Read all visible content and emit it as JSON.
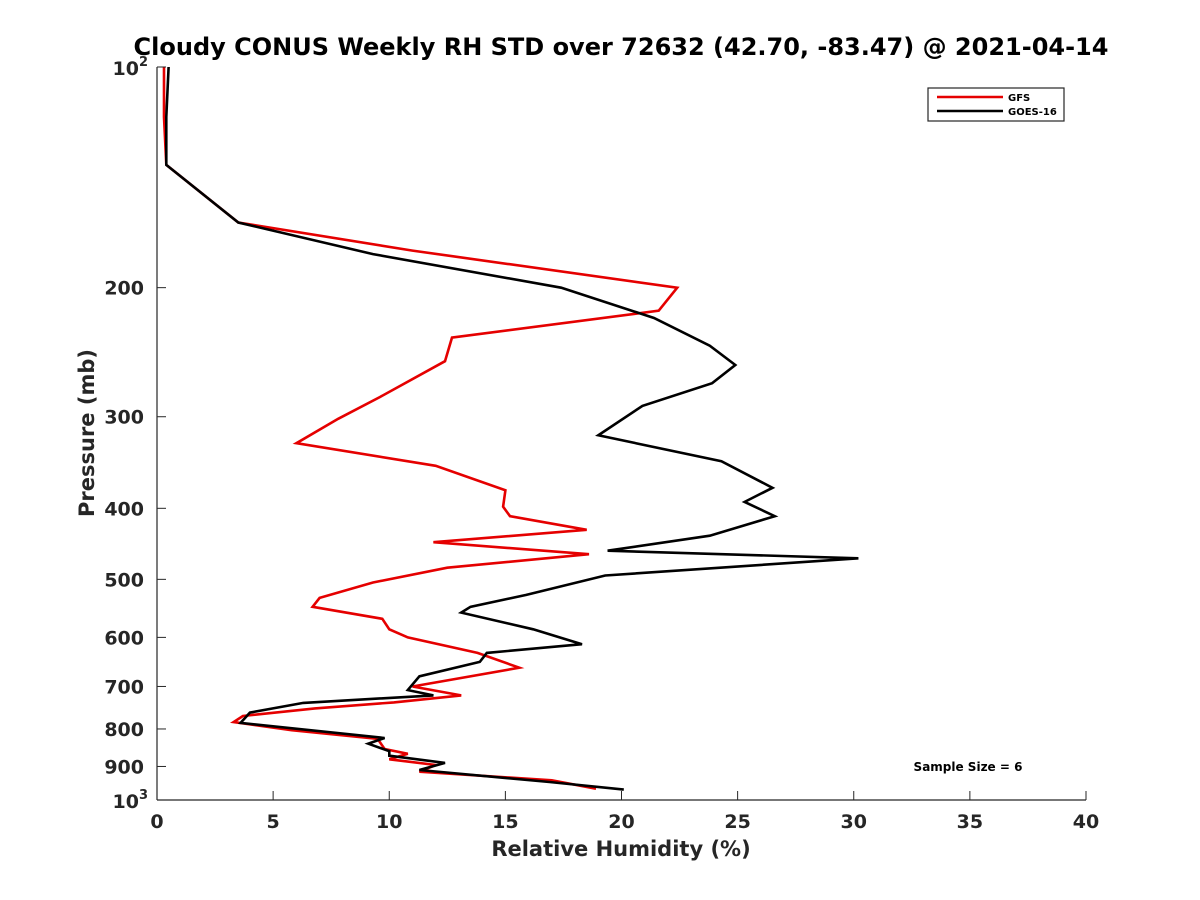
{
  "chart_data": {
    "type": "line",
    "title": "Cloudy CONUS Weekly RH STD over 72632 (42.70, -83.47) @ 2021-04-14",
    "xlabel": "Relative Humidity (%)",
    "ylabel": "Pressure (mb)",
    "xlim": [
      0,
      40
    ],
    "ylim": [
      100,
      1000
    ],
    "yscale": "log",
    "yreversed": true,
    "grid": false,
    "legend_position": "top-right",
    "x_ticks": [
      "0",
      "5",
      "10",
      "15",
      "20",
      "25",
      "30",
      "35",
      "40"
    ],
    "y_ticks": [
      {
        "value": 200,
        "label": "200"
      },
      {
        "value": 300,
        "label": "300"
      },
      {
        "value": 400,
        "label": "400"
      },
      {
        "value": 500,
        "label": "500"
      },
      {
        "value": 600,
        "label": "600"
      },
      {
        "value": 700,
        "label": "700"
      },
      {
        "value": 800,
        "label": "800"
      },
      {
        "value": 900,
        "label": "900"
      }
    ],
    "y_end_ticks": [
      {
        "value": 100,
        "base": "10",
        "exp": "2"
      },
      {
        "value": 1000,
        "base": "10",
        "exp": "3"
      }
    ],
    "annotation": "Sample Size = 6",
    "series": [
      {
        "name": "GFS",
        "color": "#e50000",
        "x": [
          0.3,
          0.3,
          0.4,
          3.5,
          11.0,
          22.4,
          21.6,
          12.7,
          12.4,
          9.6,
          7.8,
          6.0,
          12.0,
          15.0,
          14.9,
          15.2,
          18.5,
          11.9,
          18.6,
          12.5,
          9.3,
          7.0,
          6.7,
          9.7,
          10.0,
          10.8,
          13.8,
          15.6,
          11.0,
          13.1,
          10.2,
          6.8,
          3.7,
          3.3,
          5.8,
          9.5,
          9.8,
          10.8,
          10.0,
          12.0,
          11.3,
          17.0,
          18.9
        ],
        "y": [
          100,
          117,
          136,
          163,
          178,
          200,
          215,
          234,
          252,
          282,
          302,
          326,
          350,
          378,
          398,
          410,
          428,
          445,
          462,
          482,
          505,
          530,
          545,
          566,
          585,
          600,
          630,
          660,
          700,
          720,
          736,
          750,
          768,
          783,
          803,
          825,
          852,
          865,
          880,
          896,
          915,
          940,
          965
        ]
      },
      {
        "name": "GOES-16",
        "color": "#000000",
        "x": [
          0.5,
          0.4,
          0.4,
          3.5,
          9.3,
          17.4,
          21.4,
          23.8,
          24.9,
          23.9,
          20.9,
          19.0,
          24.3,
          26.5,
          25.3,
          26.6,
          23.8,
          19.4,
          30.2,
          19.3,
          15.9,
          13.5,
          13.1,
          16.2,
          18.3,
          14.2,
          13.9,
          11.3,
          10.8,
          11.9,
          6.3,
          4.0,
          3.6,
          9.8,
          9.1,
          10.0,
          10.0,
          12.4,
          11.3,
          16.9,
          20.1
        ],
        "y": [
          100,
          117,
          136,
          163,
          180,
          200,
          220,
          240,
          255,
          270,
          290,
          318,
          345,
          375,
          392,
          410,
          436,
          457,
          468,
          494,
          525,
          545,
          555,
          585,
          613,
          630,
          648,
          678,
          708,
          720,
          737,
          760,
          785,
          823,
          838,
          858,
          870,
          890,
          910,
          945,
          968
        ]
      }
    ]
  }
}
